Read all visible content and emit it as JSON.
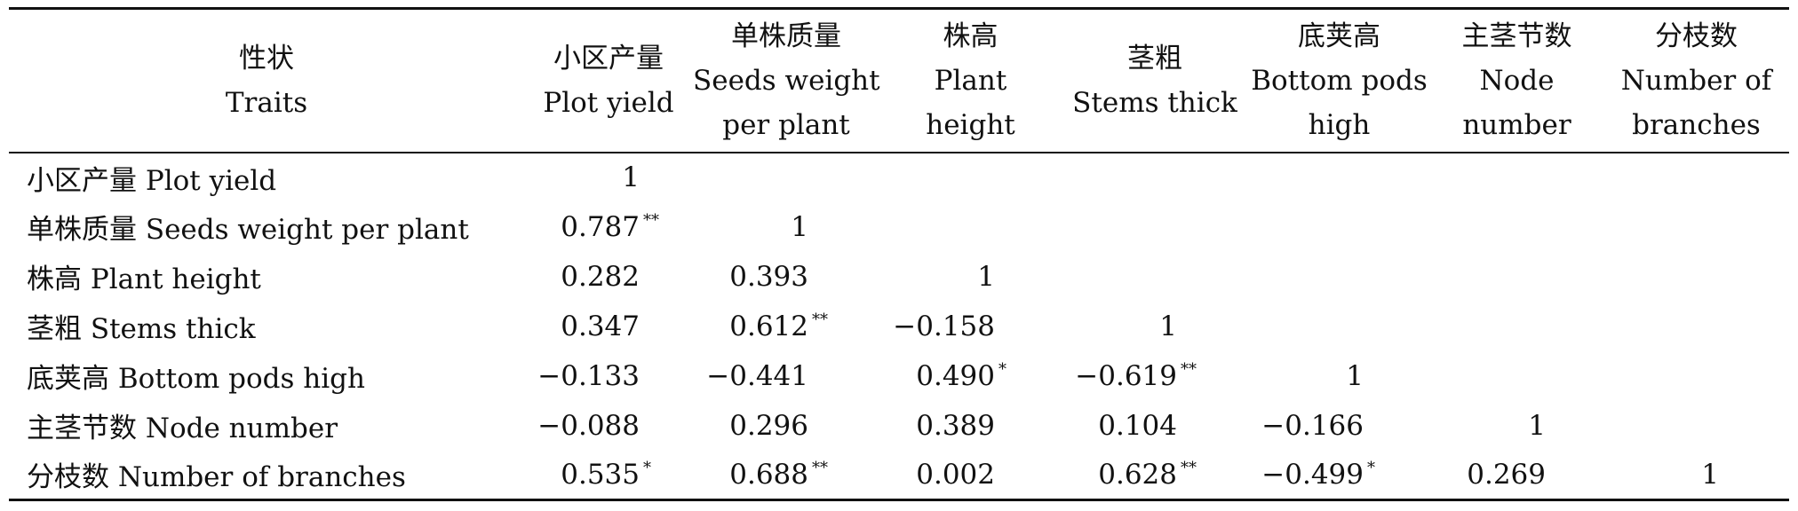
{
  "table": {
    "header": {
      "traits": {
        "zh": "性状",
        "en": "Traits"
      },
      "columns": [
        {
          "zh": "小区产量",
          "en": [
            "Plot yield"
          ]
        },
        {
          "zh": "单株质量",
          "en": [
            "Seeds weight",
            "per plant"
          ]
        },
        {
          "zh": "株高",
          "en": [
            "Plant",
            "height"
          ]
        },
        {
          "zh": "茎粗",
          "en": [
            "Stems thick"
          ]
        },
        {
          "zh": "底荚高",
          "en": [
            "Bottom pods",
            "high"
          ]
        },
        {
          "zh": "主茎节数",
          "en": [
            "Node",
            "number"
          ]
        },
        {
          "zh": "分枝数",
          "en": [
            "Number of",
            "branches"
          ]
        }
      ]
    },
    "rows": [
      {
        "label": "小区产量 Plot yield",
        "cells": [
          {
            "v": "1",
            "s": ""
          }
        ]
      },
      {
        "label": "单株质量 Seeds weight per plant",
        "cells": [
          {
            "v": "0.787",
            "s": "**"
          },
          {
            "v": "1",
            "s": ""
          }
        ]
      },
      {
        "label": "株高 Plant height",
        "cells": [
          {
            "v": "0.282",
            "s": ""
          },
          {
            "v": "0.393",
            "s": ""
          },
          {
            "v": "1",
            "s": ""
          }
        ]
      },
      {
        "label": "茎粗 Stems thick",
        "cells": [
          {
            "v": "0.347",
            "s": ""
          },
          {
            "v": "0.612",
            "s": "**"
          },
          {
            "v": "−0.158",
            "s": ""
          },
          {
            "v": "1",
            "s": ""
          }
        ]
      },
      {
        "label": "底荚高 Bottom pods high",
        "cells": [
          {
            "v": "−0.133",
            "s": ""
          },
          {
            "v": "−0.441",
            "s": ""
          },
          {
            "v": "0.490",
            "s": "*"
          },
          {
            "v": "−0.619",
            "s": "**"
          },
          {
            "v": "1",
            "s": ""
          }
        ]
      },
      {
        "label": "主茎节数 Node number",
        "cells": [
          {
            "v": "−0.088",
            "s": ""
          },
          {
            "v": "0.296",
            "s": ""
          },
          {
            "v": "0.389",
            "s": ""
          },
          {
            "v": "0.104",
            "s": ""
          },
          {
            "v": "−0.166",
            "s": ""
          },
          {
            "v": "1",
            "s": ""
          }
        ]
      },
      {
        "label": "分枝数 Number of branches",
        "cells": [
          {
            "v": "0.535",
            "s": "*"
          },
          {
            "v": "0.688",
            "s": "**"
          },
          {
            "v": "0.002",
            "s": ""
          },
          {
            "v": "0.628",
            "s": "**"
          },
          {
            "v": "−0.499",
            "s": "*"
          },
          {
            "v": "0.269",
            "s": ""
          },
          {
            "v": "1",
            "s": ""
          }
        ]
      }
    ]
  }
}
